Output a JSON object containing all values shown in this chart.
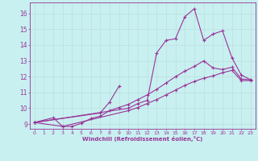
{
  "xlabel": "Windchill (Refroidissement éolien,°C)",
  "bg_color": "#c8f0f0",
  "grid_color": "#c0e0e0",
  "line_color": "#993399",
  "spine_color": "#993399",
  "xlim": [
    -0.5,
    23.5
  ],
  "ylim": [
    8.7,
    16.7
  ],
  "yticks": [
    9,
    10,
    11,
    12,
    13,
    14,
    15,
    16
  ],
  "xticks": [
    0,
    1,
    2,
    3,
    4,
    5,
    6,
    7,
    8,
    9,
    10,
    11,
    12,
    13,
    14,
    15,
    16,
    17,
    18,
    19,
    20,
    21,
    22,
    23
  ],
  "series": [
    {
      "x": [
        0,
        10,
        11,
        12,
        13,
        14,
        15,
        16,
        17,
        18,
        19,
        20,
        21,
        22,
        23
      ],
      "y": [
        9.1,
        10.0,
        10.3,
        10.5,
        13.5,
        14.3,
        14.4,
        15.8,
        16.3,
        14.3,
        14.7,
        14.9,
        13.2,
        12.1,
        11.8
      ]
    },
    {
      "x": [
        0,
        7,
        8,
        9
      ],
      "y": [
        9.1,
        9.7,
        10.4,
        11.4
      ]
    },
    {
      "x": [
        0,
        2,
        3,
        4,
        5,
        6,
        7,
        8,
        9,
        10,
        11,
        12,
        13,
        14,
        15,
        16,
        17,
        18,
        19,
        20,
        21,
        22,
        23
      ],
      "y": [
        9.1,
        9.4,
        8.85,
        8.85,
        9.05,
        9.35,
        9.5,
        9.85,
        10.05,
        10.25,
        10.55,
        10.85,
        11.2,
        11.6,
        12.0,
        12.35,
        12.65,
        13.0,
        12.55,
        12.45,
        12.6,
        11.85,
        11.8
      ]
    },
    {
      "x": [
        0,
        3,
        10,
        11,
        12,
        13,
        14,
        15,
        16,
        17,
        18,
        19,
        20,
        21,
        22,
        23
      ],
      "y": [
        9.1,
        8.85,
        9.85,
        10.05,
        10.3,
        10.55,
        10.85,
        11.15,
        11.45,
        11.7,
        11.9,
        12.05,
        12.25,
        12.4,
        11.75,
        11.75
      ]
    }
  ]
}
